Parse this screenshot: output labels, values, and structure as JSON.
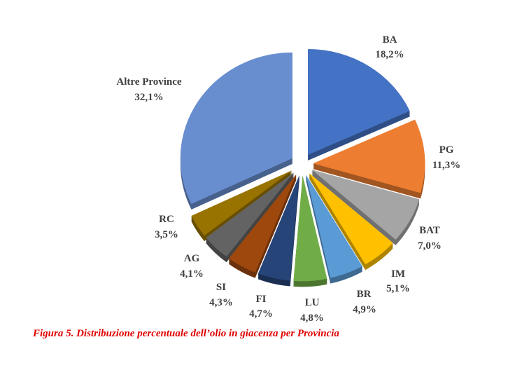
{
  "caption": "Figura 5. Distribuzione percentuale dell’olio in giacenza per Provincia",
  "chart_data": {
    "type": "pie",
    "categories": [
      "BA",
      "PG",
      "BAT",
      "IM",
      "BR",
      "LU",
      "FI",
      "SI",
      "AG",
      "RC",
      "Altre Province"
    ],
    "values": [
      18.2,
      11.3,
      7.0,
      5.1,
      4.9,
      4.8,
      4.7,
      4.3,
      4.1,
      3.5,
      32.1
    ],
    "value_labels": [
      "18,2%",
      "11,3%",
      "7,0%",
      "5,1%",
      "4,9%",
      "4,8%",
      "4,7%",
      "4,3%",
      "4,1%",
      "3,5%",
      "32,1%"
    ],
    "colors": [
      "#4472C4",
      "#ED7D31",
      "#A5A5A5",
      "#FFC000",
      "#5B9BD5",
      "#70AD47",
      "#264478",
      "#9E480E",
      "#636363",
      "#997300",
      "#698ED0"
    ],
    "legend": "none"
  },
  "styles": {
    "caption_color": "#E00000",
    "label_color": "#404040"
  }
}
